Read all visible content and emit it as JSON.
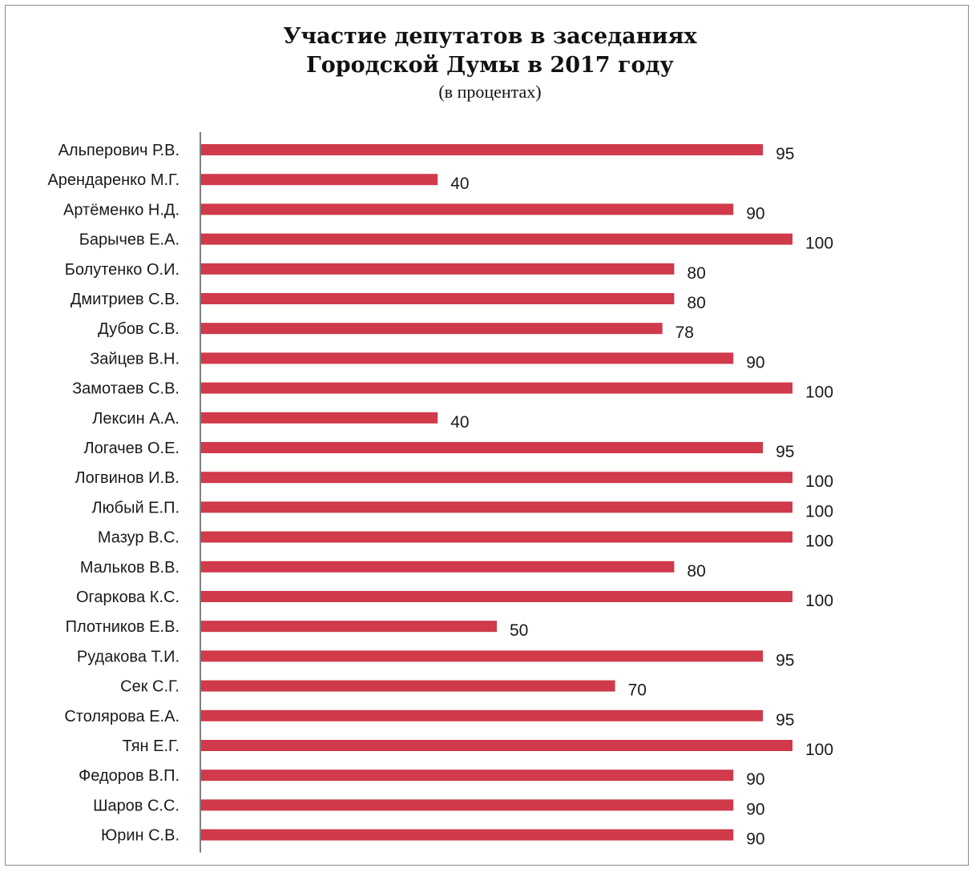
{
  "chart_data": {
    "type": "bar",
    "orientation": "horizontal",
    "title_line1": "Участие депутатов в заседаниях",
    "title_line2": "Городской Думы в 2017 году",
    "subtitle": "(в процентах)",
    "categories": [
      "Альперович Р.В.",
      "Арендаренко М.Г.",
      "Артёменко Н.Д.",
      "Барычев Е.А.",
      "Болутенко О.И.",
      "Дмитриев С.В.",
      "Дубов С.В.",
      "Зайцев В.Н.",
      "Замотаев С.В.",
      "Лексин А.А.",
      "Логачев О.Е.",
      "Логвинов И.В.",
      "Любый Е.П.",
      "Мазур В.С.",
      "Мальков В.В.",
      "Огаркова К.С.",
      "Плотников Е.В.",
      "Рудакова Т.И.",
      "Сек С.Г.",
      "Столярова Е.А.",
      "Тян Е.Г.",
      "Федоров В.П.",
      "Шаров С.С.",
      "Юрин С.В."
    ],
    "values": [
      95,
      40,
      90,
      100,
      80,
      80,
      78,
      90,
      100,
      40,
      95,
      100,
      100,
      100,
      80,
      100,
      50,
      95,
      70,
      95,
      100,
      90,
      90,
      90
    ],
    "xlim": [
      0,
      100
    ],
    "grid": false,
    "legend": "none",
    "bar_color": "#d03a4a"
  }
}
